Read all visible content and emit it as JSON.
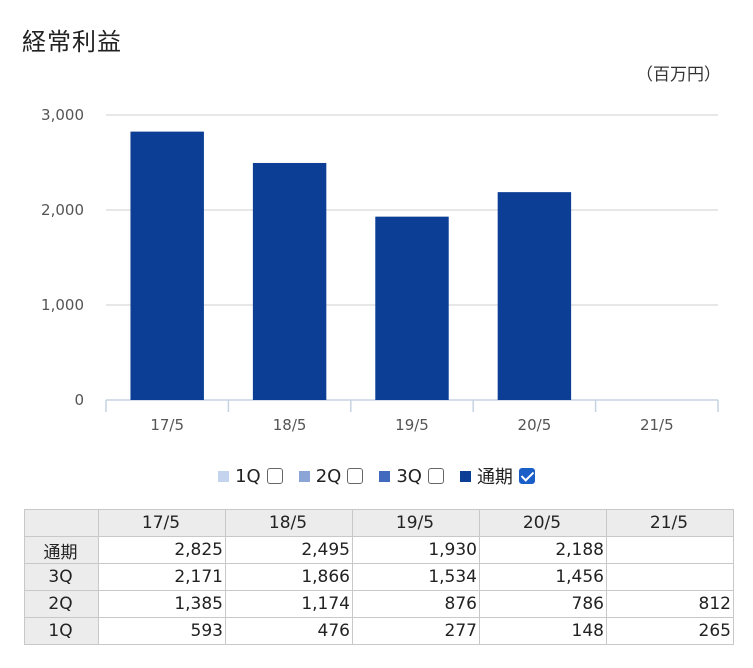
{
  "title": "経常利益",
  "unit": "（百万円）",
  "chart_data": {
    "type": "bar",
    "categories": [
      "17/5",
      "18/5",
      "19/5",
      "20/5",
      "21/5"
    ],
    "series": [
      {
        "name": "通期",
        "values": [
          2825,
          2495,
          1930,
          2188,
          null
        ]
      }
    ],
    "ylim": [
      0,
      3000
    ],
    "yticks": [
      "0",
      "1,000",
      "2,000",
      "3,000"
    ],
    "grid": true,
    "legend_position": "bottom",
    "bar_color": "#0c3e96"
  },
  "legend": [
    {
      "label": "1Q",
      "color": "#c4d4ee",
      "checked": false
    },
    {
      "label": "2Q",
      "color": "#8aa5d6",
      "checked": false
    },
    {
      "label": "3Q",
      "color": "#4169bd",
      "checked": false
    },
    {
      "label": "通期",
      "color": "#0c3e96",
      "checked": true
    }
  ],
  "table": {
    "columns": [
      "17/5",
      "18/5",
      "19/5",
      "20/5",
      "21/5"
    ],
    "rows": [
      {
        "label": "通期",
        "values": [
          "2,825",
          "2,495",
          "1,930",
          "2,188",
          ""
        ]
      },
      {
        "label": "3Q",
        "values": [
          "2,171",
          "1,866",
          "1,534",
          "1,456",
          ""
        ]
      },
      {
        "label": "2Q",
        "values": [
          "1,385",
          "1,174",
          "876",
          "786",
          "812"
        ]
      },
      {
        "label": "1Q",
        "values": [
          "593",
          "476",
          "277",
          "148",
          "265"
        ]
      }
    ]
  }
}
